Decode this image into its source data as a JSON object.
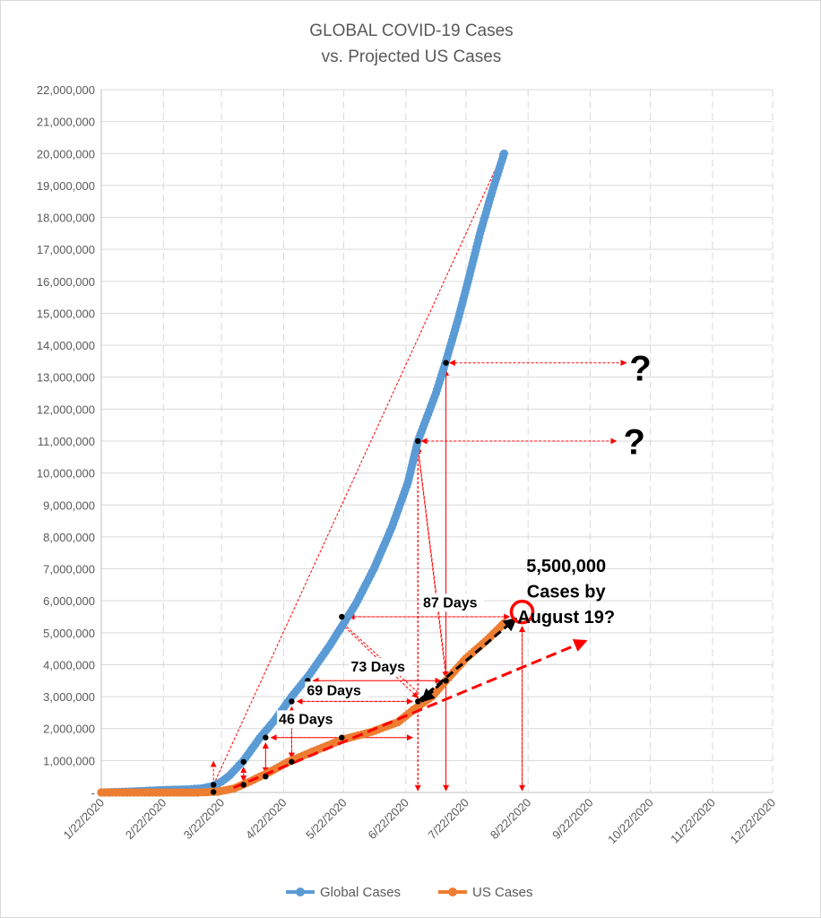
{
  "chart_data": {
    "type": "scatter",
    "title": "GLOBAL COVID-19 Cases",
    "subtitle": "vs. Projected US Cases",
    "xlabel": "",
    "ylabel": "",
    "ylim": [
      0,
      22000000
    ],
    "xlim": [
      "2020-01-22",
      "2020-12-22"
    ],
    "grid": true,
    "legend_position": "bottom",
    "y_ticks": [
      "-",
      "1,000,000",
      "2,000,000",
      "3,000,000",
      "4,000,000",
      "5,000,000",
      "6,000,000",
      "7,000,000",
      "8,000,000",
      "9,000,000",
      "10,000,000",
      "11,000,000",
      "12,000,000",
      "13,000,000",
      "14,000,000",
      "15,000,000",
      "16,000,000",
      "17,000,000",
      "18,000,000",
      "19,000,000",
      "20,000,000",
      "21,000,000",
      "22,000,000"
    ],
    "x_ticks": [
      "1/22/2020",
      "2/22/2020",
      "3/22/2020",
      "4/22/2020",
      "5/22/2020",
      "6/22/2020",
      "7/22/2020",
      "8/22/2020",
      "9/22/2020",
      "10/22/2020",
      "11/22/2020",
      "12/22/2020"
    ],
    "series": [
      {
        "name": "Global Cases",
        "color": "#5b9bd5",
        "x": [
          "2020-01-22",
          "2020-02-05",
          "2020-02-22",
          "2020-03-05",
          "2020-03-12",
          "2020-03-17",
          "2020-03-19",
          "2020-03-22",
          "2020-03-26",
          "2020-04-02",
          "2020-04-10",
          "2020-04-18",
          "2020-04-26",
          "2020-05-05",
          "2020-05-15",
          "2020-05-21",
          "2020-05-28",
          "2020-06-06",
          "2020-06-15",
          "2020-06-23",
          "2020-06-28",
          "2020-07-07",
          "2020-07-12",
          "2020-07-18",
          "2020-07-23",
          "2020-07-29",
          "2020-08-04",
          "2020-08-10"
        ],
        "values": [
          580,
          28000,
          78000,
          98000,
          130000,
          190000,
          240000,
          340000,
          530000,
          1000000,
          1700000,
          2300000,
          3000000,
          3700000,
          4600000,
          5200000,
          5900000,
          7000000,
          8300000,
          9700000,
          11000000,
          12500000,
          13500000,
          14800000,
          16000000,
          17500000,
          18800000,
          20000000
        ]
      },
      {
        "name": "US Cases",
        "color": "#ed7d31",
        "x": [
          "2020-01-22",
          "2020-02-22",
          "2020-03-10",
          "2020-03-20",
          "2020-03-28",
          "2020-04-05",
          "2020-04-15",
          "2020-04-24",
          "2020-05-08",
          "2020-05-21",
          "2020-06-05",
          "2020-06-18",
          "2020-06-26",
          "2020-07-05",
          "2020-07-12",
          "2020-07-22",
          "2020-08-02",
          "2020-08-10"
        ],
        "values": [
          1,
          15,
          1000,
          25000,
          120000,
          340000,
          640000,
          950000,
          1320000,
          1650000,
          1900000,
          2200000,
          2600000,
          3000000,
          3500000,
          4200000,
          4800000,
          5300000
        ]
      }
    ],
    "highlight_points": {
      "global": [
        {
          "x": "2020-03-18",
          "y": 240000
        },
        {
          "x": "2020-04-02",
          "y": 960000
        },
        {
          "x": "2020-04-13",
          "y": 1720000
        },
        {
          "x": "2020-04-26",
          "y": 2850000
        },
        {
          "x": "2020-05-04",
          "y": 3500000
        },
        {
          "x": "2020-05-21",
          "y": 5500000
        },
        {
          "x": "2020-06-28",
          "y": 11000000
        },
        {
          "x": "2020-07-12",
          "y": 13450000
        }
      ],
      "us": [
        {
          "x": "2020-03-18",
          "y": 15000
        },
        {
          "x": "2020-04-02",
          "y": 240000
        },
        {
          "x": "2020-04-13",
          "y": 500000
        },
        {
          "x": "2020-04-26",
          "y": 960000
        },
        {
          "x": "2020-05-21",
          "y": 1720000
        },
        {
          "x": "2020-06-28",
          "y": 2850000
        },
        {
          "x": "2020-07-12",
          "y": 3500000
        }
      ]
    },
    "annotations": [
      {
        "text": "46 Days",
        "x": "2020-05-03",
        "y": 2150000
      },
      {
        "text": "69 Days",
        "x": "2020-05-17",
        "y": 3050000
      },
      {
        "text": "73 Days",
        "x": "2020-06-08",
        "y": 3790000
      },
      {
        "text": "87 Days",
        "x": "2020-07-14",
        "y": 5800000
      },
      {
        "text": "5,500,000",
        "x": "2020-09-10",
        "y": 6900000
      },
      {
        "text": "Cases by",
        "x": "2020-09-10",
        "y": 6100000
      },
      {
        "text": "August 19?",
        "x": "2020-09-10",
        "y": 5300000
      },
      {
        "text": "?",
        "x": "2020-10-17",
        "y": 12900000
      },
      {
        "text": "?",
        "x": "2020-10-14",
        "y": 10600000
      }
    ],
    "target_circle": {
      "x": "2020-08-19",
      "y": 5650000
    }
  }
}
